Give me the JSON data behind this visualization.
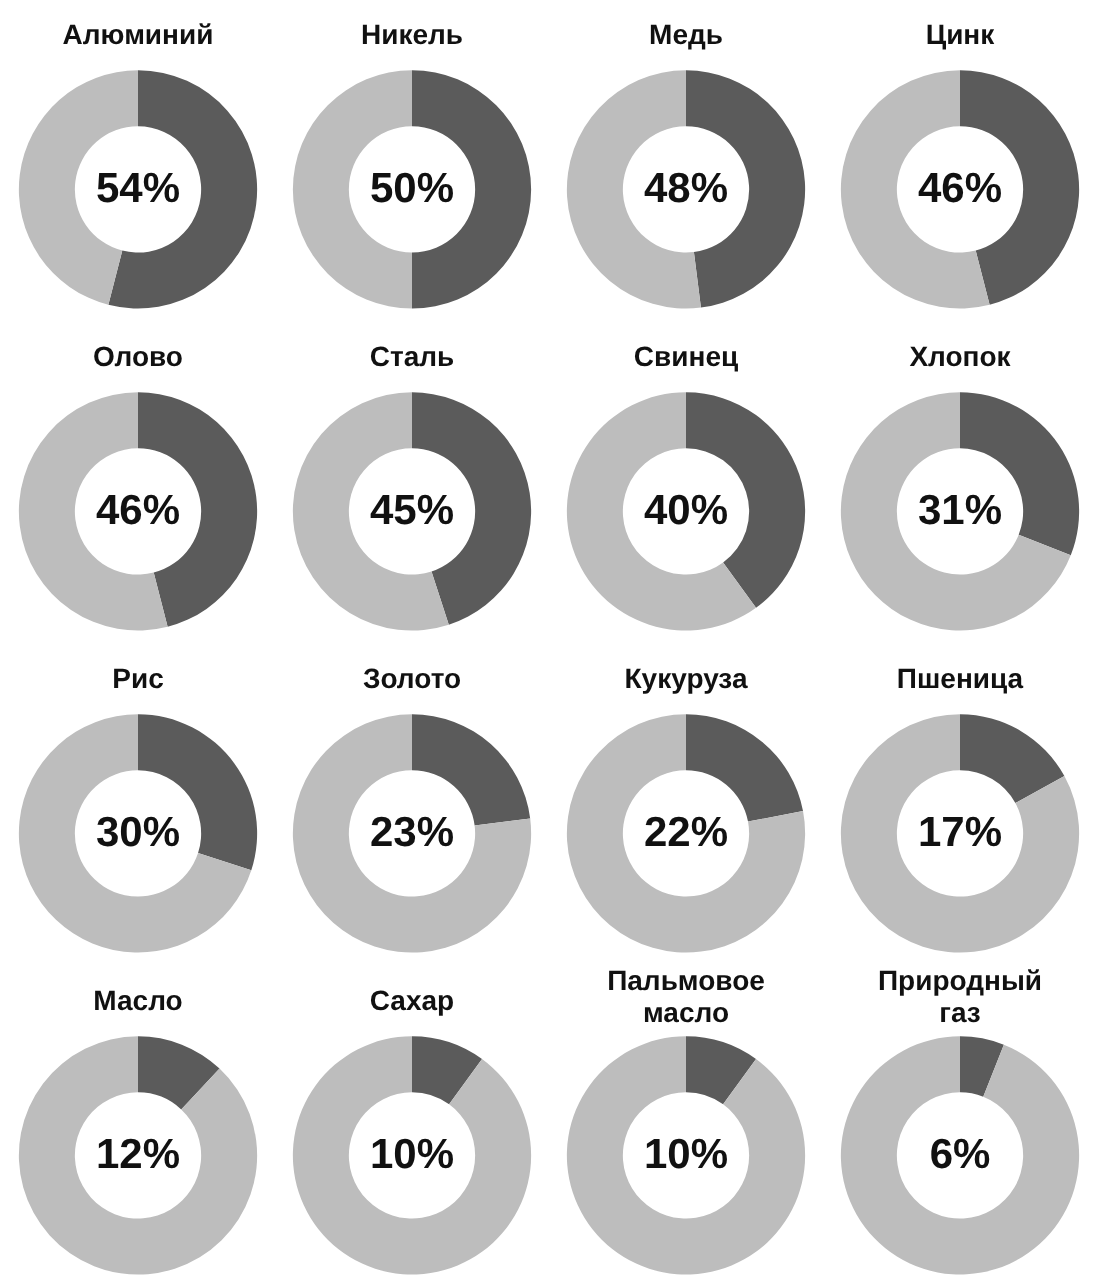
{
  "chart_data": [
    {
      "type": "donut",
      "title": "Алюминий",
      "categories": [
        null,
        null
      ],
      "values": [
        54,
        46
      ],
      "annotations": [
        "54%"
      ],
      "colors": [
        "#5b5b5b",
        "#bdbdbd"
      ]
    },
    {
      "type": "donut",
      "title": "Никель",
      "categories": [
        null,
        null
      ],
      "values": [
        50,
        50
      ],
      "annotations": [
        "50%"
      ],
      "colors": [
        "#5b5b5b",
        "#bdbdbd"
      ]
    },
    {
      "type": "donut",
      "title": "Медь",
      "categories": [
        null,
        null
      ],
      "values": [
        48,
        52
      ],
      "annotations": [
        "48%"
      ],
      "colors": [
        "#5b5b5b",
        "#bdbdbd"
      ]
    },
    {
      "type": "donut",
      "title": "Цинк",
      "categories": [
        null,
        null
      ],
      "values": [
        46,
        54
      ],
      "annotations": [
        "46%"
      ],
      "colors": [
        "#5b5b5b",
        "#bdbdbd"
      ]
    },
    {
      "type": "donut",
      "title": "Олово",
      "categories": [
        null,
        null
      ],
      "values": [
        46,
        54
      ],
      "annotations": [
        "46%"
      ],
      "colors": [
        "#5b5b5b",
        "#bdbdbd"
      ]
    },
    {
      "type": "donut",
      "title": "Сталь",
      "categories": [
        null,
        null
      ],
      "values": [
        45,
        55
      ],
      "annotations": [
        "45%"
      ],
      "colors": [
        "#5b5b5b",
        "#bdbdbd"
      ]
    },
    {
      "type": "donut",
      "title": "Свинец",
      "categories": [
        null,
        null
      ],
      "values": [
        40,
        60
      ],
      "annotations": [
        "40%"
      ],
      "colors": [
        "#5b5b5b",
        "#bdbdbd"
      ]
    },
    {
      "type": "donut",
      "title": "Хлопок",
      "categories": [
        null,
        null
      ],
      "values": [
        31,
        69
      ],
      "annotations": [
        "31%"
      ],
      "colors": [
        "#5b5b5b",
        "#bdbdbd"
      ]
    },
    {
      "type": "donut",
      "title": "Рис",
      "categories": [
        null,
        null
      ],
      "values": [
        30,
        70
      ],
      "annotations": [
        "30%"
      ],
      "colors": [
        "#5b5b5b",
        "#bdbdbd"
      ]
    },
    {
      "type": "donut",
      "title": "Золото",
      "categories": [
        null,
        null
      ],
      "values": [
        23,
        77
      ],
      "annotations": [
        "23%"
      ],
      "colors": [
        "#5b5b5b",
        "#bdbdbd"
      ]
    },
    {
      "type": "donut",
      "title": "Кукуруза",
      "categories": [
        null,
        null
      ],
      "values": [
        22,
        78
      ],
      "annotations": [
        "22%"
      ],
      "colors": [
        "#5b5b5b",
        "#bdbdbd"
      ]
    },
    {
      "type": "donut",
      "title": "Пшеница",
      "categories": [
        null,
        null
      ],
      "values": [
        17,
        83
      ],
      "annotations": [
        "17%"
      ],
      "colors": [
        "#5b5b5b",
        "#bdbdbd"
      ]
    },
    {
      "type": "donut",
      "title": "Масло",
      "categories": [
        null,
        null
      ],
      "values": [
        12,
        88
      ],
      "annotations": [
        "12%"
      ],
      "colors": [
        "#5b5b5b",
        "#bdbdbd"
      ]
    },
    {
      "type": "donut",
      "title": "Сахар",
      "categories": [
        null,
        null
      ],
      "values": [
        10,
        90
      ],
      "annotations": [
        "10%"
      ],
      "colors": [
        "#5b5b5b",
        "#bdbdbd"
      ]
    },
    {
      "type": "donut",
      "title": "Пальмовое масло",
      "categories": [
        null,
        null
      ],
      "values": [
        10,
        90
      ],
      "annotations": [
        "10%"
      ],
      "colors": [
        "#5b5b5b",
        "#bdbdbd"
      ]
    },
    {
      "type": "donut",
      "title": "Природный газ",
      "categories": [
        null,
        null
      ],
      "values": [
        6,
        94
      ],
      "annotations": [
        "6%"
      ],
      "colors": [
        "#5b5b5b",
        "#bdbdbd"
      ]
    }
  ]
}
